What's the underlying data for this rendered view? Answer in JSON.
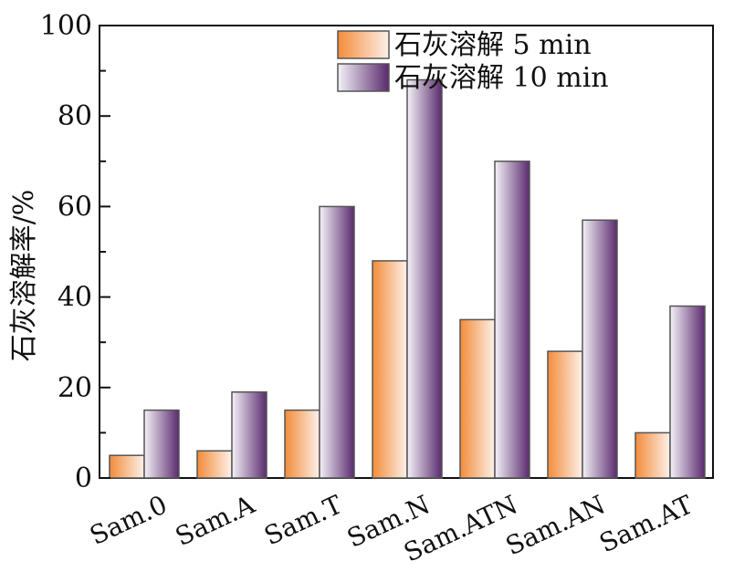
{
  "chart_data": {
    "type": "bar",
    "title": "",
    "xlabel": "",
    "ylabel": "石灰溶解率/%",
    "ylim": [
      0,
      100
    ],
    "yticks": [
      0,
      20,
      40,
      60,
      80,
      100
    ],
    "grid": false,
    "legend_position": "top-right",
    "categories": [
      "Sam.0",
      "Sam.A",
      "Sam.T",
      "Sam.N",
      "Sam.ATN",
      "Sam.AN",
      "Sam.AT"
    ],
    "series": [
      {
        "name": "石灰溶解 5 min",
        "values": [
          5,
          6,
          15,
          48,
          35,
          28,
          10
        ],
        "color": "#f28c3a"
      },
      {
        "name": "石灰溶解 10 min",
        "values": [
          15,
          19,
          60,
          88,
          70,
          57,
          38
        ],
        "color": "#5a2a6e"
      }
    ]
  }
}
